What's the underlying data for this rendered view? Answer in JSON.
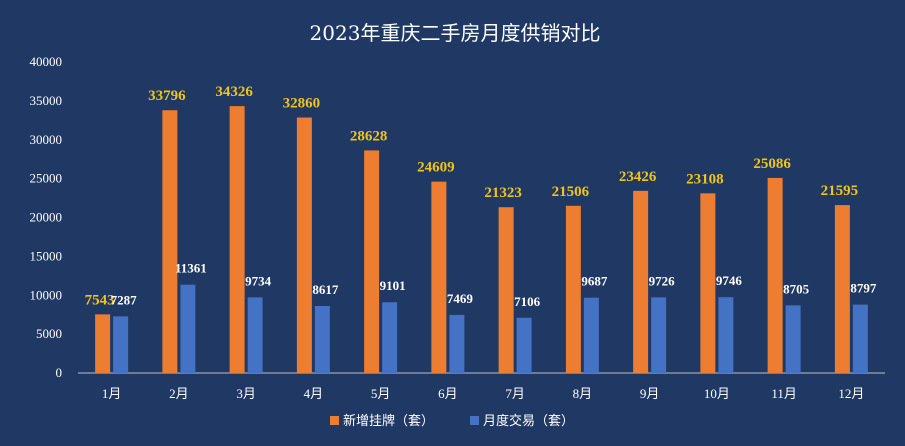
{
  "chart_data": {
    "type": "bar",
    "title": "2023年重庆二手房月度供销对比",
    "categories": [
      "1月",
      "2月",
      "3月",
      "4月",
      "5月",
      "6月",
      "7月",
      "8月",
      "9月",
      "10月",
      "11月",
      "12月"
    ],
    "series": [
      {
        "name": "新增挂牌（套）",
        "color": "#ed7d31",
        "label_color": "#f0c419",
        "values": [
          7543,
          33796,
          34326,
          32860,
          28628,
          24609,
          21323,
          21506,
          23426,
          23108,
          25086,
          21595
        ]
      },
      {
        "name": "月度交易（套）",
        "color": "#4472c4",
        "label_color": "#ffffff",
        "values": [
          7287,
          11361,
          9734,
          8617,
          9101,
          7469,
          7106,
          9687,
          9726,
          9746,
          8705,
          8797
        ]
      }
    ],
    "ylim": [
      0,
      40000
    ],
    "yticks": [
      0,
      5000,
      10000,
      15000,
      20000,
      25000,
      30000,
      35000,
      40000
    ],
    "grid": false,
    "legend": "bottom",
    "background": "#1f3864"
  }
}
